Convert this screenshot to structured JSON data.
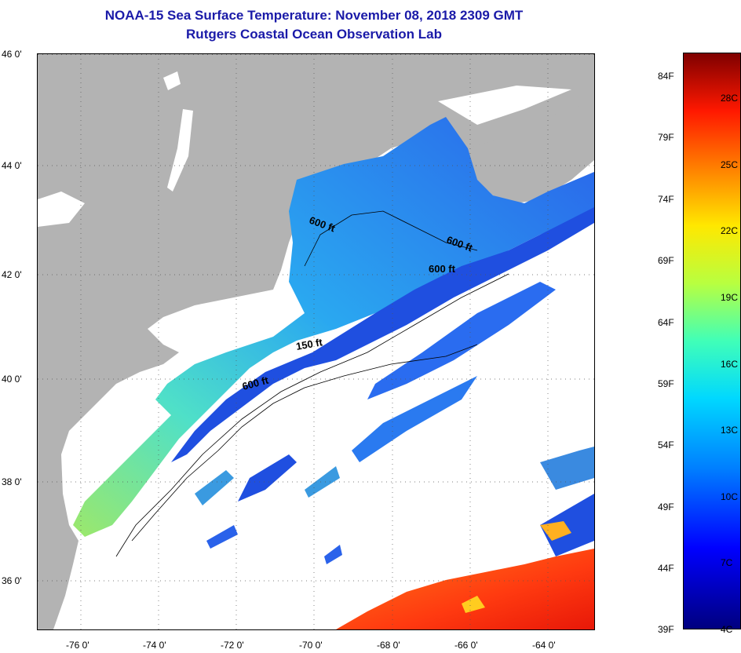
{
  "header": {
    "title": "NOAA-15 Sea Surface Temperature:  November 08, 2018 2309 GMT",
    "subtitle": "Rutgers Coastal Ocean Observation Lab"
  },
  "axes": {
    "latitude": [
      "46 0'",
      "44 0'",
      "42 0'",
      "40 0'",
      "38 0'",
      "36 0'"
    ],
    "longitude": [
      "-76 0'",
      "-74 0'",
      "-72 0'",
      "-70 0'",
      "-68 0'",
      "-66 0'",
      "-64 0'"
    ]
  },
  "contours": [
    "600 ft",
    "600 ft",
    "600 ft",
    "150 ft",
    "600 ft"
  ],
  "colorbar": {
    "fahrenheit": [
      "84F",
      "79F",
      "74F",
      "69F",
      "64F",
      "59F",
      "54F",
      "49F",
      "44F",
      "39F"
    ],
    "celsius": [
      "28C",
      "25C",
      "22C",
      "19C",
      "16C",
      "13C",
      "10C",
      "7C",
      "4C"
    ]
  },
  "colors": {
    "land": "#b3b3b3",
    "cloud": "#ffffff",
    "title": "#1a1aa8",
    "cold_water": "#1f5fe8",
    "warm_water": "#ff5a10"
  }
}
